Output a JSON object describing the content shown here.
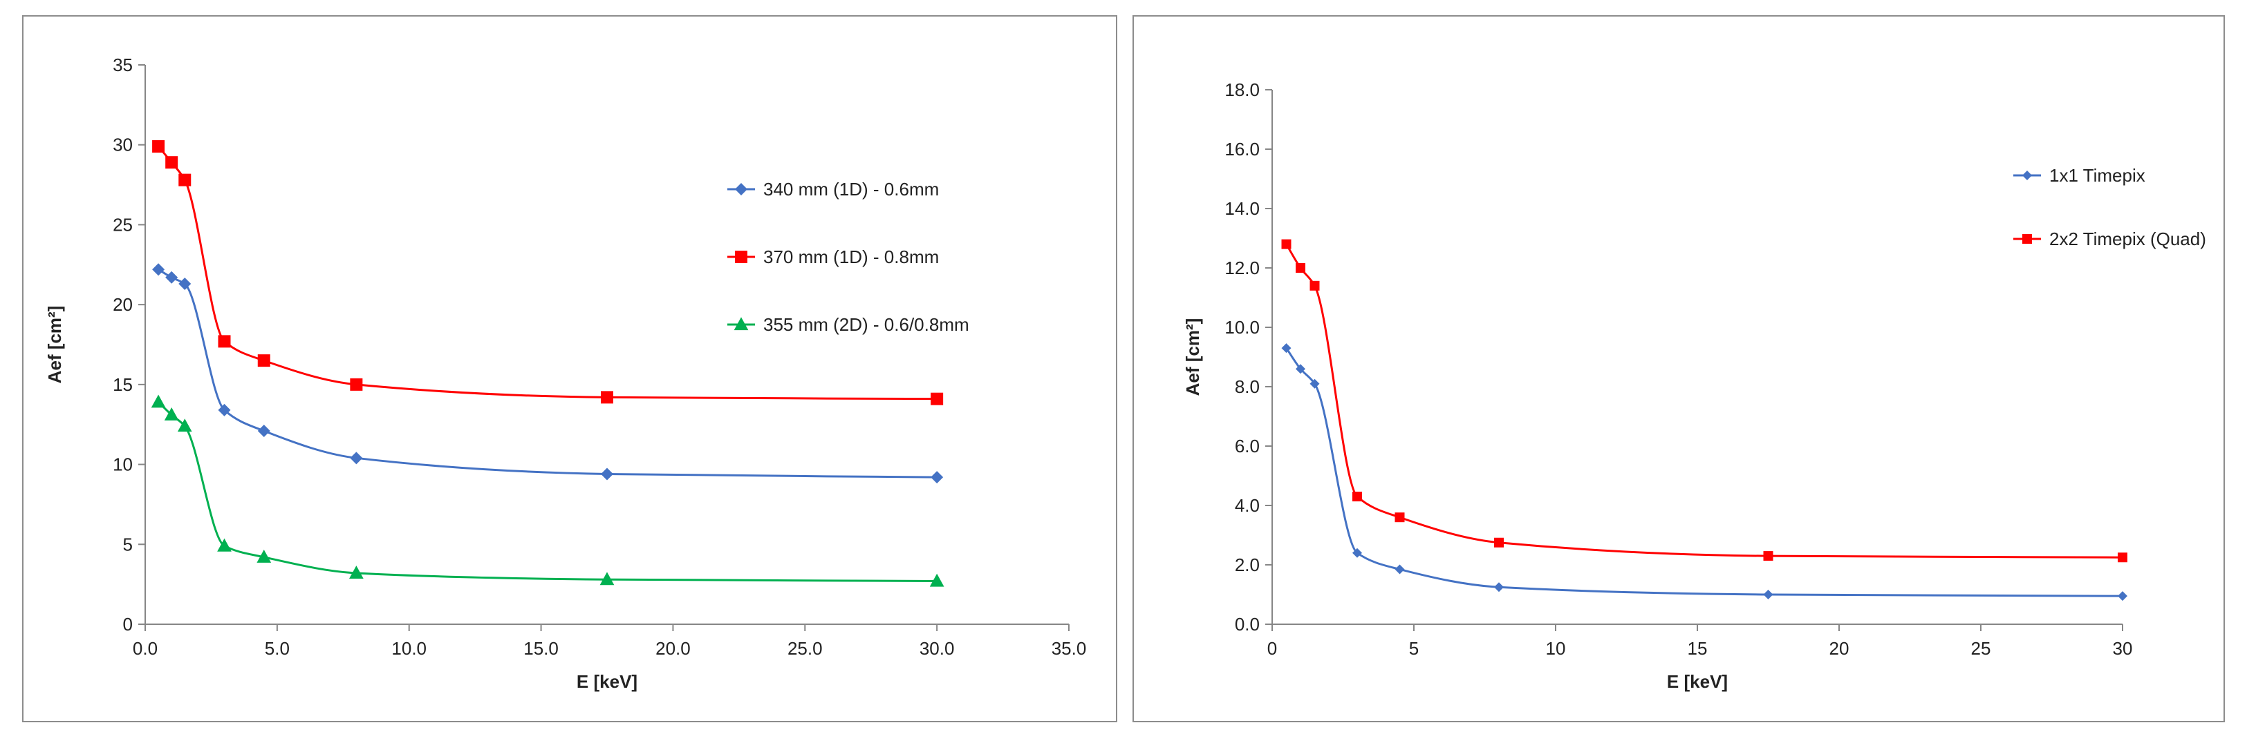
{
  "chart_data": [
    {
      "type": "line",
      "smooth": true,
      "title": "",
      "xlabel": "E [keV]",
      "ylabel": "Aef [cm²]",
      "xlim": [
        0,
        35
      ],
      "ylim": [
        0,
        35
      ],
      "x_ticks": [
        0,
        5,
        10,
        15,
        20,
        25,
        30,
        35
      ],
      "x_tick_labels": [
        "0.0",
        "5.0",
        "10.0",
        "15.0",
        "20.0",
        "25.0",
        "30.0",
        "35.0"
      ],
      "y_ticks": [
        0,
        5,
        10,
        15,
        20,
        25,
        30,
        35
      ],
      "y_tick_labels": [
        "0",
        "5",
        "10",
        "15",
        "20",
        "25",
        "30",
        "35"
      ],
      "grid": false,
      "legend_position": "right",
      "series": [
        {
          "name": "340 mm (1D) - 0.6mm",
          "color": "#4472c4",
          "marker": "diamond",
          "x": [
            0.5,
            1.0,
            1.5,
            3.0,
            4.5,
            8.0,
            17.5,
            30.0
          ],
          "y": [
            22.2,
            21.7,
            21.3,
            13.4,
            12.1,
            10.4,
            9.4,
            9.2
          ]
        },
        {
          "name": "370 mm (1D) - 0.8mm",
          "color": "#ff0000",
          "marker": "square",
          "x": [
            0.5,
            1.0,
            1.5,
            3.0,
            4.5,
            8.0,
            17.5,
            30.0
          ],
          "y": [
            29.9,
            28.9,
            27.8,
            17.7,
            16.5,
            15.0,
            14.2,
            14.1
          ]
        },
        {
          "name": "355 mm (2D) - 0.6/0.8mm",
          "color": "#00b050",
          "marker": "triangle",
          "x": [
            0.5,
            1.0,
            1.5,
            3.0,
            4.5,
            8.0,
            17.5,
            30.0
          ],
          "y": [
            13.9,
            13.1,
            12.4,
            4.9,
            4.2,
            3.2,
            2.8,
            2.7
          ]
        }
      ]
    },
    {
      "type": "line",
      "smooth": true,
      "title": "",
      "xlabel": "E [keV]",
      "ylabel": "Aef [cm²]",
      "xlim": [
        0,
        30
      ],
      "ylim": [
        0,
        18
      ],
      "x_ticks": [
        0,
        5,
        10,
        15,
        20,
        25,
        30
      ],
      "x_tick_labels": [
        "0",
        "5",
        "10",
        "15",
        "20",
        "25",
        "30"
      ],
      "y_ticks": [
        0,
        2,
        4,
        6,
        8,
        10,
        12,
        14,
        16,
        18
      ],
      "y_tick_labels": [
        "0.0",
        "2.0",
        "4.0",
        "6.0",
        "8.0",
        "10.0",
        "12.0",
        "14.0",
        "16.0",
        "18.0"
      ],
      "grid": false,
      "legend_position": "right",
      "series": [
        {
          "name": "1x1 Timepix",
          "color": "#4472c4",
          "marker": "diamond",
          "x": [
            0.5,
            1.0,
            1.5,
            3.0,
            4.5,
            8.0,
            17.5,
            30.0
          ],
          "y": [
            9.3,
            8.6,
            8.1,
            2.4,
            1.85,
            1.25,
            1.0,
            0.95
          ]
        },
        {
          "name": "2x2 Timepix (Quad)",
          "color": "#ff0000",
          "marker": "square",
          "x": [
            0.5,
            1.0,
            1.5,
            3.0,
            4.5,
            8.0,
            17.5,
            30.0
          ],
          "y": [
            12.8,
            12.0,
            11.4,
            4.3,
            3.6,
            2.75,
            2.3,
            2.25
          ]
        }
      ]
    }
  ]
}
